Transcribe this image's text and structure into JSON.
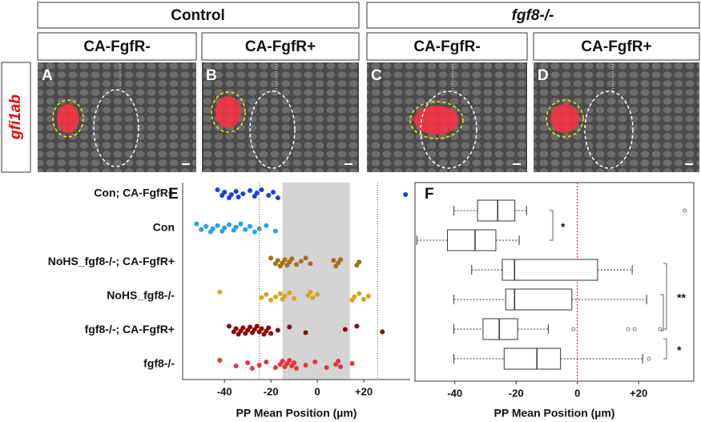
{
  "figure": {
    "column_headers": [
      "Control",
      "fgf8-/-"
    ],
    "panel_headers": [
      "CA-FgfR-",
      "CA-FgfR+",
      "CA-FgfR-",
      "CA-FgfR+"
    ],
    "panel_letters": [
      "A",
      "B",
      "C",
      "D"
    ],
    "row_label": "gfi1ab"
  },
  "chart_data": [
    {
      "type": "strip",
      "panel_label": "E",
      "categories": [
        "Con; CA-FgfR+",
        "Con",
        "NoHS_fgf8-/-; CA-FgfR+",
        "NoHS_fgf8-/-",
        "fgf8-/-; CA-FgfR+",
        "fgf8-/-"
      ],
      "series": [
        {
          "color": "#1a3fe0",
          "values": [
            -43,
            -41,
            -40,
            -38,
            -37,
            -35,
            -34,
            -32,
            -29,
            -27,
            -26,
            -24,
            -21,
            -19,
            -17,
            38
          ]
        },
        {
          "color": "#29a0e8",
          "values": [
            -52,
            -50,
            -48,
            -46,
            -45,
            -43,
            -41,
            -40,
            -38,
            -36,
            -35,
            -33,
            -31,
            -29,
            -27,
            -25,
            -22,
            -18
          ]
        },
        {
          "color": "#a0701a",
          "values": [
            -20,
            -18,
            -17,
            -16,
            -15,
            -14,
            -13,
            -12,
            -11,
            -9,
            -7,
            -5,
            -3,
            7,
            8,
            9,
            10,
            17,
            18
          ]
        },
        {
          "color": "#d9a21c",
          "values": [
            -42,
            -24,
            -22,
            -20,
            -18,
            -16,
            -15,
            -14,
            -12,
            -10,
            -4,
            -3,
            -2,
            0,
            15,
            16,
            18,
            20,
            22
          ]
        },
        {
          "color": "#8b0a0a",
          "values": [
            -38,
            -36,
            -35,
            -34,
            -33,
            -32,
            -31,
            -30,
            -29,
            -28,
            -27,
            -26,
            -25,
            -24,
            -23,
            -22,
            -21,
            -20,
            -17,
            -12,
            -5,
            12,
            17,
            28
          ]
        },
        {
          "color": "#e8343a",
          "values": [
            -42,
            -35,
            -30,
            -28,
            -25,
            -22,
            -18,
            -16,
            -15,
            -14,
            -13,
            -12,
            -11,
            -10,
            -9,
            -5,
            -1,
            4,
            8,
            9,
            10,
            15
          ]
        }
      ],
      "xlim": [
        -58,
        40
      ],
      "xticks": [
        -40,
        -20,
        0,
        {
          "value": 20,
          "label": "+20"
        }
      ],
      "shaded_range": [
        -15,
        14
      ],
      "ref_lines": [
        -25,
        26
      ],
      "x_label": "PP Mean Position (µm)"
    },
    {
      "type": "box",
      "panel_label": "F",
      "boxes": [
        {
          "low": -40.3,
          "q1": -32.6,
          "median": -26,
          "q3": -20.4,
          "high": -16.6,
          "outliers": [
            35
          ]
        },
        {
          "low": -52.4,
          "q1": -42.4,
          "median": -33.4,
          "q3": -26.6,
          "high": -19,
          "outliers": []
        },
        {
          "low": -34.5,
          "q1": -24.5,
          "median": -20.5,
          "q3": 6.6,
          "high": 17.9,
          "outliers": []
        },
        {
          "low": -40.3,
          "q1": -23.4,
          "median": -20.5,
          "q3": -1.8,
          "high": 22.6,
          "outliers": []
        },
        {
          "low": -40.3,
          "q1": -30.8,
          "median": -25.5,
          "q3": -19.5,
          "high": -9.5,
          "outliers": [
            -1.3,
            16.6,
            18.7,
            27
          ]
        },
        {
          "low": -40.3,
          "q1": -23.9,
          "median": -13.2,
          "q3": -5.5,
          "high": 21.3,
          "outliers": [
            23.4
          ]
        }
      ],
      "xlim": [
        -53,
        38
      ],
      "xticks": [
        -40,
        -20,
        0,
        {
          "value": 20,
          "label": "+20"
        }
      ],
      "ref_line": 0,
      "ref_color": "#e00000",
      "annotations": [
        "*",
        "**",
        "*"
      ],
      "x_label": "PP Mean Position (µm)"
    }
  ]
}
